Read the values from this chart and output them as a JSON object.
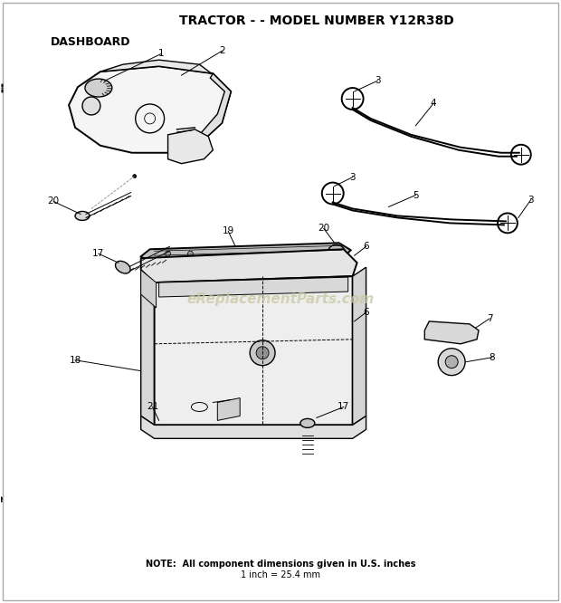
{
  "title": "TRACTOR - - MODEL NUMBER Y12R38D",
  "section_label": "DASHBOARD",
  "background_color": "#ffffff",
  "text_color": "#000000",
  "line_color": "#000000",
  "watermark_text": "eReplacementParts.com",
  "watermark_color": "#c8c8a0",
  "note_line1": "NOTE:  All component dimensions given in U.S. inches",
  "note_line2": "1 inch = 25.4 mm",
  "title_fontsize": 10,
  "section_fontsize": 9,
  "label_fontsize": 7.5,
  "note_fontsize": 7,
  "fig_width": 6.2,
  "fig_height": 6.66,
  "dpi": 100
}
